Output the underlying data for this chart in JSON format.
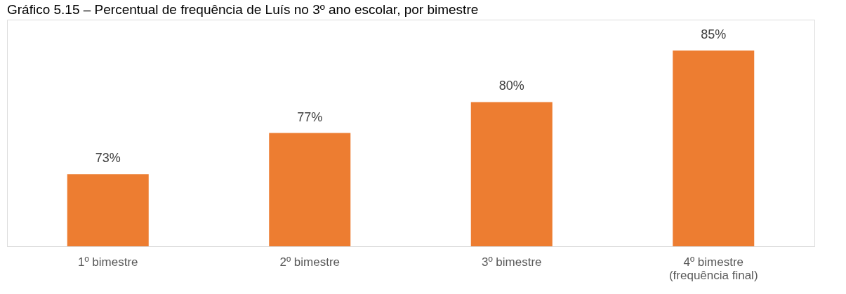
{
  "chart_data": {
    "type": "bar",
    "title": "Gráfico 5.15 – Percentual de frequência de Luís no 3º ano escolar, por bimestre",
    "categories": [
      "1º bimestre",
      "2º bimestre",
      "3º bimestre",
      "4º bimestre\n(frequência final)"
    ],
    "values": [
      73,
      77,
      80,
      85
    ],
    "color": "#ed7d31",
    "ylim": [
      66,
      88
    ],
    "data_labels": true,
    "value_labels": [
      "73%",
      "77%",
      "80%",
      "85%"
    ],
    "grid": false,
    "tick_labels": "x"
  }
}
